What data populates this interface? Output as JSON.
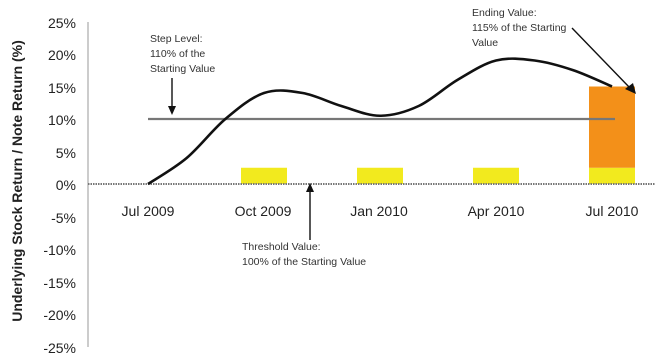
{
  "chart_data": {
    "type": "line",
    "title": "",
    "xlabel": "",
    "ylabel": "Underlying Stock Return / Note Return (%)",
    "ylim": [
      -25,
      25
    ],
    "y_ticks": [
      "-25%",
      "-20%",
      "-15%",
      "-10%",
      "-5%",
      "0%",
      "5%",
      "10%",
      "15%",
      "20%",
      "25%"
    ],
    "x_ticks": [
      "Jul 2009",
      "Oct 2009",
      "Jan 2010",
      "Apr 2010",
      "Jul 2010"
    ],
    "grid": false,
    "legend": "none",
    "series": [
      {
        "values": [
          0,
          4,
          10,
          14,
          14,
          12,
          10.5,
          12,
          16,
          19,
          19,
          17.5,
          15
        ]
      }
    ],
    "series_x_months": [
      "2009-07",
      "2009-08",
      "2009-09",
      "2009-10",
      "2009-11",
      "2009-12",
      "2010-01",
      "2010-02",
      "2010-03",
      "2010-04",
      "2010-05",
      "2010-06",
      "2010-07"
    ],
    "bars": [
      {
        "category": "Oct 2009",
        "coupon": 2.5,
        "color": "#f2ea1e"
      },
      {
        "category": "Jan 2010",
        "coupon": 2.5,
        "color": "#f2ea1e"
      },
      {
        "category": "Apr 2010",
        "coupon": 2.5,
        "color": "#f2ea1e"
      },
      {
        "category": "Jul 2010",
        "coupon": 2.5,
        "color": "#f2ea1e"
      },
      {
        "category": "Jul 2010",
        "coupon_upside": 12.5,
        "color": "#f39019"
      }
    ],
    "reference_lines": [
      {
        "name": "step",
        "value": 10
      },
      {
        "name": "threshold",
        "value": 0
      }
    ],
    "annotations": {
      "step_level": [
        "Step Level:",
        "110% of the",
        "Starting Value"
      ],
      "ending_value": [
        "Ending Value:",
        "115% of the Starting",
        "Value"
      ],
      "threshold_value": [
        "Threshold Value:",
        "100% of the Starting Value"
      ]
    },
    "colors": {
      "line": "#111111",
      "reference": "#777777",
      "coupon": "#f2ea1e",
      "upside": "#f39019"
    }
  }
}
